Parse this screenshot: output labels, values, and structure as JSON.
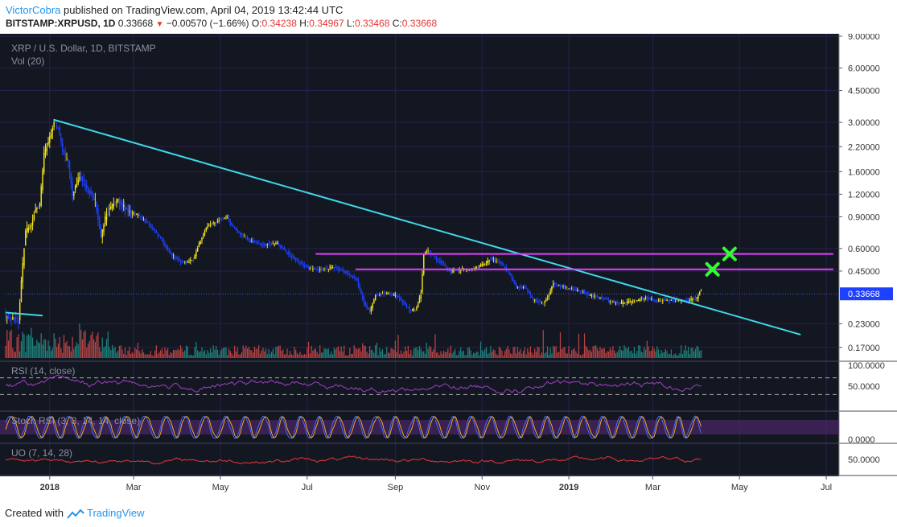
{
  "header": {
    "author": "VictorCobra",
    "published": "published on TradingView.com, April 04, 2019 13:42:44 UTC",
    "symbol_line": "BITSTAMP:XRPUSD, 1D",
    "last": "0.33668",
    "change": "−0.00570 (−1.66%)",
    "o_label": "O:",
    "o_val": "0.34238",
    "h_label": "H:",
    "h_val": "0.34967",
    "l_label": "L:",
    "l_val": "0.33468",
    "c_label": "C:",
    "c_val": "0.33668"
  },
  "footer": {
    "created": "Created with",
    "brand": "TradingView"
  },
  "colors": {
    "background": "#131722",
    "grid": "#2a1f4a",
    "candle": "#f5e51b",
    "candle_down": "#1e40ff",
    "vol_up": "#26a69a",
    "vol_down": "#ef5350",
    "trendline": "#3fd8e8",
    "resistance": "#e040fb",
    "target_mark": "#2eff2e",
    "rsi_line": "#a040c0",
    "stoch_k": "#3f6bff",
    "stoch_d": "#f5a623",
    "uo_line": "#e53935",
    "price_tag": "#1e40ff"
  },
  "chart_data": {
    "type": "candlestick",
    "title": "XRP / U.S. Dollar, 1D, BITSTAMP",
    "volume_label": "Vol (20)",
    "y_scale": "log",
    "ylim": [
      0.15,
      9.0
    ],
    "y_ticks": [
      "9.00000",
      "6.00000",
      "4.50000",
      "3.00000",
      "2.20000",
      "1.60000",
      "1.20000",
      "0.90000",
      "0.60000",
      "0.45000",
      "0.23000",
      "0.17000"
    ],
    "last_price_label": "0.33668",
    "x_ticks": [
      "2018",
      "Mar",
      "May",
      "Jul",
      "Sep",
      "Nov",
      "2019",
      "Mar",
      "May",
      "Jul"
    ],
    "price_path": [
      [
        "2017-12-01",
        0.25
      ],
      [
        "2017-12-10",
        0.24
      ],
      [
        "2017-12-12",
        0.4
      ],
      [
        "2017-12-15",
        0.75
      ],
      [
        "2017-12-19",
        0.8
      ],
      [
        "2017-12-22",
        1.0
      ],
      [
        "2017-12-25",
        1.05
      ],
      [
        "2017-12-28",
        2.0
      ],
      [
        "2018-01-01",
        2.5
      ],
      [
        "2018-01-04",
        3.0
      ],
      [
        "2018-01-07",
        2.8
      ],
      [
        "2018-01-10",
        2.1
      ],
      [
        "2018-01-14",
        1.8
      ],
      [
        "2018-01-17",
        1.2
      ],
      [
        "2018-01-22",
        1.5
      ],
      [
        "2018-01-26",
        1.35
      ],
      [
        "2018-02-02",
        1.1
      ],
      [
        "2018-02-06",
        0.7
      ],
      [
        "2018-02-10",
        0.95
      ],
      [
        "2018-02-18",
        1.12
      ],
      [
        "2018-02-25",
        0.95
      ],
      [
        "2018-03-04",
        0.92
      ],
      [
        "2018-03-12",
        0.82
      ],
      [
        "2018-03-20",
        0.68
      ],
      [
        "2018-03-28",
        0.55
      ],
      [
        "2018-04-05",
        0.5
      ],
      [
        "2018-04-12",
        0.52
      ],
      [
        "2018-04-17",
        0.67
      ],
      [
        "2018-04-22",
        0.8
      ],
      [
        "2018-04-28",
        0.85
      ],
      [
        "2018-05-05",
        0.9
      ],
      [
        "2018-05-13",
        0.74
      ],
      [
        "2018-05-22",
        0.66
      ],
      [
        "2018-06-01",
        0.63
      ],
      [
        "2018-06-10",
        0.64
      ],
      [
        "2018-06-17",
        0.57
      ],
      [
        "2018-06-24",
        0.51
      ],
      [
        "2018-07-01",
        0.47
      ],
      [
        "2018-07-10",
        0.46
      ],
      [
        "2018-07-20",
        0.47
      ],
      [
        "2018-07-30",
        0.44
      ],
      [
        "2018-08-05",
        0.4
      ],
      [
        "2018-08-10",
        0.3
      ],
      [
        "2018-08-14",
        0.27
      ],
      [
        "2018-08-18",
        0.33
      ],
      [
        "2018-08-26",
        0.34
      ],
      [
        "2018-09-01",
        0.33
      ],
      [
        "2018-09-07",
        0.3
      ],
      [
        "2018-09-12",
        0.27
      ],
      [
        "2018-09-16",
        0.28
      ],
      [
        "2018-09-19",
        0.34
      ],
      [
        "2018-09-21",
        0.56
      ],
      [
        "2018-09-24",
        0.58
      ],
      [
        "2018-10-02",
        0.51
      ],
      [
        "2018-10-10",
        0.45
      ],
      [
        "2018-10-18",
        0.46
      ],
      [
        "2018-10-26",
        0.46
      ],
      [
        "2018-11-03",
        0.5
      ],
      [
        "2018-11-07",
        0.53
      ],
      [
        "2018-11-14",
        0.5
      ],
      [
        "2018-11-20",
        0.44
      ],
      [
        "2018-11-25",
        0.37
      ],
      [
        "2018-12-02",
        0.36
      ],
      [
        "2018-12-07",
        0.31
      ],
      [
        "2018-12-14",
        0.3
      ],
      [
        "2018-12-18",
        0.33
      ],
      [
        "2018-12-21",
        0.39
      ],
      [
        "2018-12-26",
        0.37
      ],
      [
        "2019-01-02",
        0.36
      ],
      [
        "2019-01-09",
        0.35
      ],
      [
        "2019-01-16",
        0.33
      ],
      [
        "2019-01-24",
        0.32
      ],
      [
        "2019-02-02",
        0.3
      ],
      [
        "2019-02-10",
        0.3
      ],
      [
        "2019-02-18",
        0.31
      ],
      [
        "2019-02-24",
        0.32
      ],
      [
        "2019-03-02",
        0.31
      ],
      [
        "2019-03-10",
        0.31
      ],
      [
        "2019-03-18",
        0.31
      ],
      [
        "2019-03-26",
        0.31
      ],
      [
        "2019-04-01",
        0.32
      ],
      [
        "2019-04-03",
        0.35
      ]
    ],
    "annotations": {
      "trendline": [
        [
          "2018-01-04",
          3.1
        ],
        [
          "2019-06-13",
          0.2
        ]
      ],
      "left_trendline": [
        [
          "2017-12-01",
          0.265
        ],
        [
          "2017-12-27",
          0.255
        ]
      ],
      "resistance_upper": {
        "value": 0.56,
        "from": "2018-07-07",
        "to": "2019-07-06"
      },
      "resistance_lower": {
        "value": 0.46,
        "from": "2018-08-04",
        "to": "2019-07-06"
      },
      "targets": [
        [
          "2019-04-12",
          0.46
        ],
        [
          "2019-04-24",
          0.56
        ]
      ]
    },
    "indicators": [
      {
        "name": "RSI (14, close)",
        "ticks": [
          "100.0000",
          "50.0000"
        ]
      },
      {
        "name": "Stoch RSI (3, 3, 14, 14, close)",
        "ticks": [
          "0.0000"
        ]
      },
      {
        "name": "UO (7, 14, 28)",
        "ticks": [
          "50.0000"
        ]
      }
    ]
  }
}
